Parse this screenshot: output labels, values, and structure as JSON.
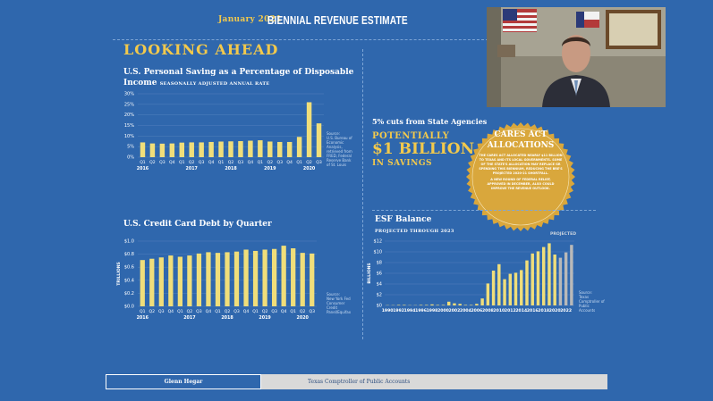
{
  "header": {
    "date": "January 2021",
    "title": "BIENNIAL REVENUE ESTIMATE"
  },
  "section_title": "LOOKING AHEAD",
  "chart_data": [
    {
      "type": "bar",
      "title": "U.S. Personal Saving as a Percentage of Disposable Income",
      "subtitle": "SEASONALLY ADJUSTED ANNUAL RATE",
      "categories": [
        "Q1",
        "Q2",
        "Q3",
        "Q4",
        "Q1",
        "Q2",
        "Q3",
        "Q4",
        "Q1",
        "Q2",
        "Q3",
        "Q4",
        "Q1",
        "Q2",
        "Q3",
        "Q4",
        "Q1",
        "Q2",
        "Q3"
      ],
      "years": [
        {
          "label": "2016",
          "index": 0
        },
        {
          "label": "2017",
          "index": 4
        },
        {
          "label": "2018",
          "index": 8
        },
        {
          "label": "2019",
          "index": 12
        },
        {
          "label": "2020",
          "index": 16
        }
      ],
      "values": [
        7.0,
        6.5,
        6.4,
        6.5,
        6.9,
        7.0,
        7.0,
        7.2,
        7.4,
        7.5,
        7.6,
        7.8,
        8.0,
        7.4,
        7.2,
        7.2,
        9.6,
        26.0,
        16.0
      ],
      "yticks": [
        "0%",
        "5%",
        "10%",
        "15%",
        "20%",
        "25%",
        "30%"
      ],
      "ylim": [
        0,
        30
      ],
      "source": [
        "Source:",
        "U.S. Bureau of",
        "Economic",
        "Analysis,",
        "retrieved from",
        "FRED, Federal",
        "Reserve Bank",
        "of St. Louis"
      ]
    },
    {
      "type": "bar",
      "title": "U.S. Credit Card Debt by Quarter",
      "ylabel": "TRILLIONS",
      "categories": [
        "Q1",
        "Q2",
        "Q3",
        "Q4",
        "Q1",
        "Q2",
        "Q3",
        "Q4",
        "Q1",
        "Q2",
        "Q3",
        "Q4",
        "Q1",
        "Q2",
        "Q3",
        "Q4",
        "Q1",
        "Q2",
        "Q3"
      ],
      "years": [
        {
          "label": "2016",
          "index": 0
        },
        {
          "label": "2017",
          "index": 4
        },
        {
          "label": "2018",
          "index": 8
        },
        {
          "label": "2019",
          "index": 12
        },
        {
          "label": "2020",
          "index": 16
        }
      ],
      "values": [
        0.71,
        0.73,
        0.75,
        0.78,
        0.76,
        0.78,
        0.81,
        0.83,
        0.82,
        0.83,
        0.84,
        0.87,
        0.85,
        0.87,
        0.88,
        0.93,
        0.89,
        0.82,
        0.81
      ],
      "yticks": [
        "$0.0",
        "$0.2",
        "$0.4",
        "$0.6",
        "$0.8",
        "$1.0"
      ],
      "ylim": [
        0,
        1.0
      ],
      "source": [
        "Source:",
        "New York Fed",
        "Consumer",
        "Credit",
        "Panel/Equifax"
      ]
    },
    {
      "type": "bar",
      "title": "ESF Balance",
      "subtitle": "PROJECTED THROUGH 2023",
      "ylabel": "BILLIONS",
      "annotation": "PROJECTED",
      "x": [
        1990,
        1991,
        1992,
        1993,
        1994,
        1995,
        1996,
        1997,
        1998,
        1999,
        2000,
        2001,
        2002,
        2003,
        2004,
        2005,
        2006,
        2007,
        2008,
        2009,
        2010,
        2011,
        2012,
        2013,
        2014,
        2015,
        2016,
        2017,
        2018,
        2019,
        2020,
        2021,
        2022,
        2023
      ],
      "xticks": [
        "1990",
        "1992",
        "1994",
        "1996",
        "1998",
        "2000",
        "2002",
        "2004",
        "2006",
        "2008",
        "2010",
        "2012",
        "2014",
        "2016",
        "2018",
        "2020",
        "2022"
      ],
      "values": [
        0.05,
        0.05,
        0.1,
        0.1,
        0.05,
        0.05,
        0.1,
        0.1,
        0.2,
        0.1,
        0.1,
        0.7,
        0.4,
        0.3,
        0.1,
        0.1,
        0.3,
        1.3,
        4.1,
        6.5,
        7.7,
        4.9,
        5.9,
        6.1,
        6.6,
        8.4,
        9.7,
        10.1,
        10.9,
        11.6,
        9.5,
        8.9,
        9.9,
        11.3
      ],
      "projected_from": 2021,
      "yticks": [
        "$0",
        "$2",
        "$4",
        "$6",
        "$8",
        "$10",
        "$12"
      ],
      "ylim": [
        0,
        12
      ],
      "source": [
        "Source:",
        "Texas",
        "Comptroller of",
        "Public",
        "Accounts"
      ]
    }
  ],
  "callout": {
    "cuts": "5% cuts from State Agencies",
    "potentially": "POTENTIALLY",
    "amount": "$1 BILLION",
    "savings": "IN SAVINGS"
  },
  "seal": {
    "heading_line1": "CARES ACT",
    "heading_line2": "ALLOCATIONS",
    "body1": "THE CARES ACT ALLOCATED NEARLY $11 BILLION TO TEXAS AND ITS LOCAL GOVERNMENTS. SOME OF THE STATE'S ALLOCATION MAY REPLACE GR SPENDING THIS BIENNIUM, REDUCING THE BRE'S PROJECTED 2020-21 SHORTFALL.",
    "body2": "A NEW ROUND OF FEDERAL RELIEF, APPROVED IN DECEMBER, ALSO COULD IMPROVE THE REVENUE OUTLOOK."
  },
  "footer": {
    "name": "Glenn Hegar",
    "office": "Texas Comptroller of Public Accounts"
  },
  "colors": {
    "background": "#2f67ad",
    "gold": "#f2c94c",
    "bar": "#f0de7a",
    "projected_bar": "#b9b9b9",
    "seal": "#d9a73c"
  }
}
